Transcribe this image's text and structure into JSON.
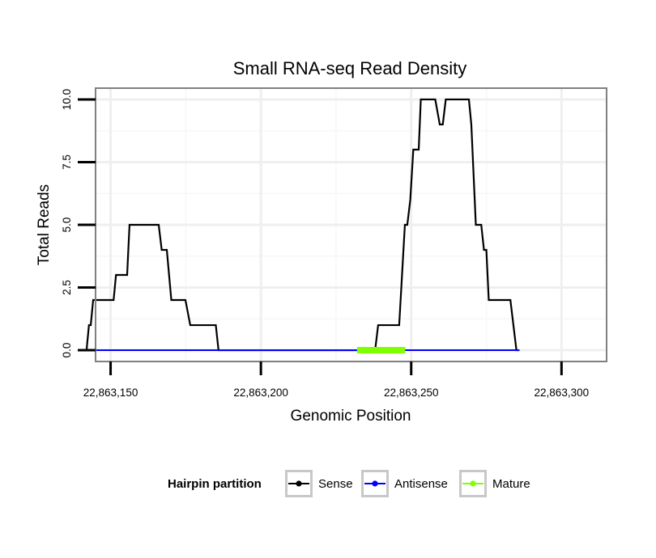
{
  "chart_data": {
    "type": "line",
    "title": "Small RNA-seq Read Density",
    "xlabel": "Genomic Position",
    "ylabel": "Total Reads",
    "xlim": [
      22863145,
      22863315
    ],
    "ylim": [
      -0.45,
      10.45
    ],
    "x_ticks": [
      22863150,
      22863200,
      22863250,
      22863300
    ],
    "x_tick_labels": [
      "22,863,150",
      "22,863,200",
      "22,863,250",
      "22,863,300"
    ],
    "y_ticks": [
      0,
      2.5,
      5,
      7.5,
      10
    ],
    "y_tick_labels": [
      "0.0",
      "2.5",
      "5.0",
      "7.5",
      "10.0"
    ],
    "grid": true,
    "legend": {
      "title": "Hairpin partition",
      "position": "bottom",
      "entries": [
        "Sense",
        "Antisense",
        "Mature"
      ]
    },
    "series": [
      {
        "name": "Sense",
        "color": "#000000",
        "points": [
          [
            22863140.0,
            0
          ],
          [
            22863142.0,
            0
          ],
          [
            22863142.8,
            1
          ],
          [
            22863143.4,
            1
          ],
          [
            22863144.2,
            2
          ],
          [
            22863151.0,
            2
          ],
          [
            22863151.8,
            3
          ],
          [
            22863155.5,
            3
          ],
          [
            22863156.3,
            5
          ],
          [
            22863166.0,
            5
          ],
          [
            22863167.0,
            4
          ],
          [
            22863168.7,
            4
          ],
          [
            22863170.2,
            2
          ],
          [
            22863174.9,
            2
          ],
          [
            22863176.5,
            1
          ],
          [
            22863185.0,
            1
          ],
          [
            22863185.9,
            0
          ],
          [
            22863222.0,
            0
          ],
          [
            22863223.5,
            0
          ],
          [
            22863229.5,
            0
          ],
          [
            22863232.0,
            0
          ],
          [
            22863238.0,
            0
          ],
          [
            22863239.0,
            1
          ],
          [
            22863246.0,
            1
          ],
          [
            22863247.9,
            5
          ],
          [
            22863248.7,
            5
          ],
          [
            22863249.7,
            6
          ],
          [
            22863250.7,
            8
          ],
          [
            22863252.5,
            8
          ],
          [
            22863253.2,
            10
          ],
          [
            22863258.0,
            10
          ],
          [
            22863259.5,
            9
          ],
          [
            22863260.5,
            9
          ],
          [
            22863261.5,
            10
          ],
          [
            22863269.2,
            10
          ],
          [
            22863270.0,
            9
          ],
          [
            22863271.5,
            5
          ],
          [
            22863273.3,
            5
          ],
          [
            22863274.2,
            4
          ],
          [
            22863275.0,
            4
          ],
          [
            22863275.8,
            2
          ],
          [
            22863283.0,
            2
          ],
          [
            22863285.0,
            0
          ],
          [
            22863286.0,
            0
          ]
        ]
      },
      {
        "name": "Antisense",
        "color": "#0000ff",
        "points": [
          [
            22863140.0,
            0
          ],
          [
            22863286.0,
            0
          ]
        ]
      },
      {
        "name": "Mature",
        "color": "#7fff00",
        "points": [
          [
            22863232.0,
            0
          ],
          [
            22863248.0,
            0
          ]
        ]
      }
    ]
  }
}
